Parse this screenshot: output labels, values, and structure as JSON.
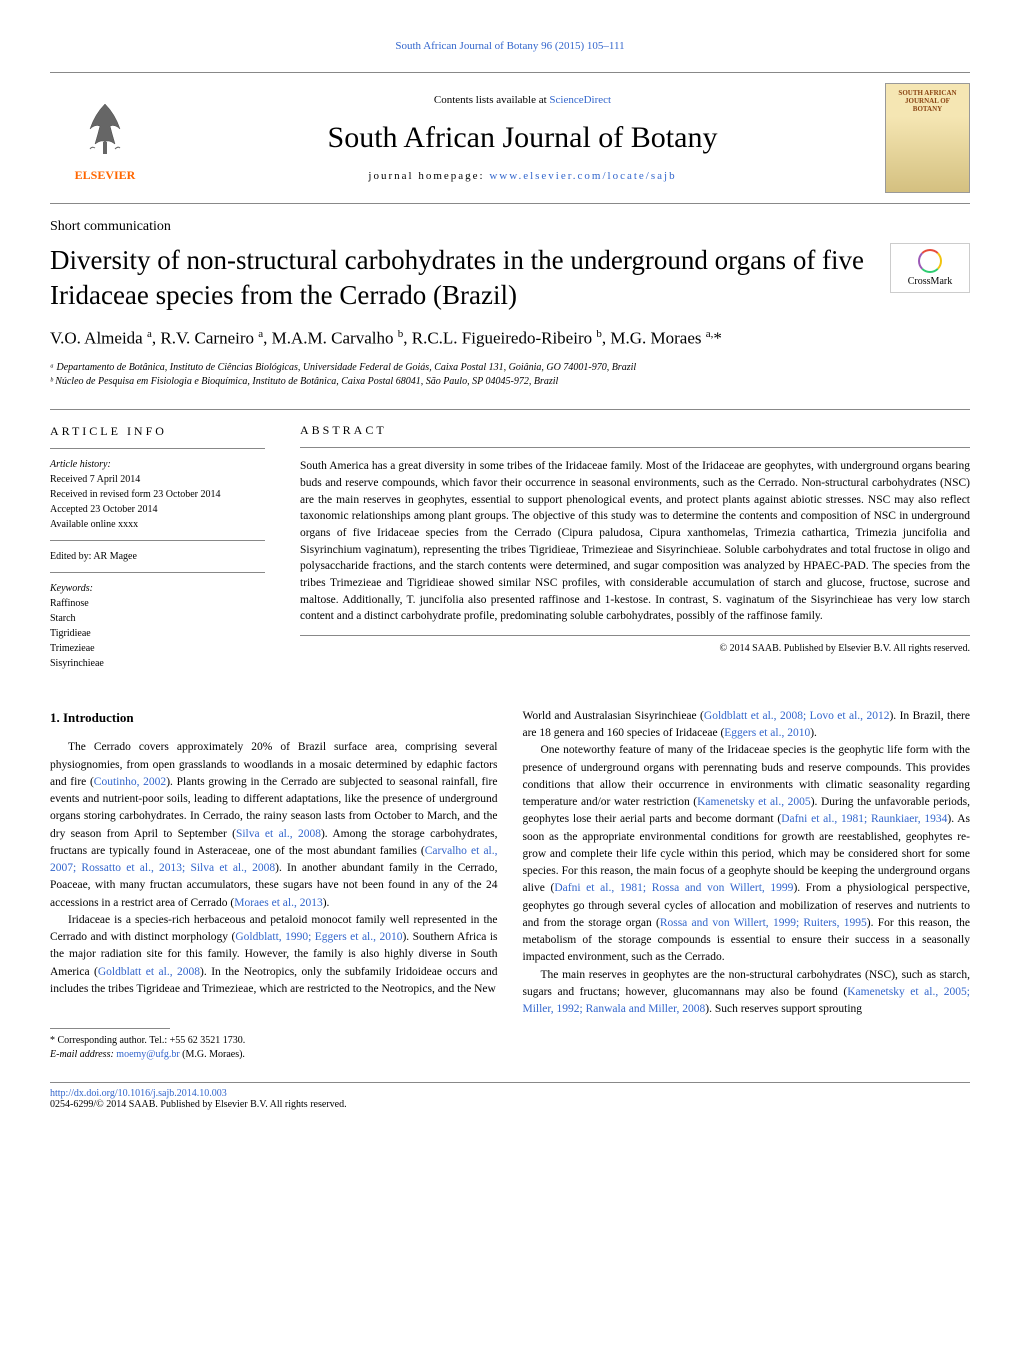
{
  "header": {
    "citation_link": "South African Journal of Botany 96 (2015) 105–111",
    "contents_text": "Contents lists available at ",
    "contents_link": "ScienceDirect",
    "journal_name": "South African Journal of Botany",
    "homepage_label": "journal homepage: ",
    "homepage_url": "www.elsevier.com/locate/sajb",
    "elsevier_text": "ELSEVIER",
    "cover_title": "SOUTH AFRICAN JOURNAL OF BOTANY",
    "crossmark_text": "CrossMark"
  },
  "article": {
    "short_comm": "Short communication",
    "title": "Diversity of non-structural carbohydrates in the underground organs of five Iridaceae species from the Cerrado (Brazil)",
    "authors_html": "V.O. Almeida <sup>a</sup>, R.V. Carneiro <sup>a</sup>, M.A.M. Carvalho <sup>b</sup>, R.C.L. Figueiredo-Ribeiro <sup>b</sup>, M.G. Moraes <sup>a,</sup>*",
    "affiliations": [
      "ᵃ Departamento de Botânica, Instituto de Ciências Biológicas, Universidade Federal de Goiás, Caixa Postal 131, Goiânia, GO 74001-970, Brazil",
      "ᵇ Núcleo de Pesquisa em Fisiologia e Bioquímica, Instituto de Botânica, Caixa Postal 68041, São Paulo, SP 04045-972, Brazil"
    ]
  },
  "info": {
    "heading": "ARTICLE INFO",
    "history_label": "Article history:",
    "history": [
      "Received 7 April 2014",
      "Received in revised form 23 October 2014",
      "Accepted 23 October 2014",
      "Available online xxxx"
    ],
    "edited_by": "Edited by: AR Magee",
    "keywords_label": "Keywords:",
    "keywords": [
      "Raffinose",
      "Starch",
      "Tigridieae",
      "Trimezieae",
      "Sisyrinchieae"
    ]
  },
  "abstract": {
    "heading": "ABSTRACT",
    "text": "South America has a great diversity in some tribes of the Iridaceae family. Most of the Iridaceae are geophytes, with underground organs bearing buds and reserve compounds, which favor their occurrence in seasonal environments, such as the Cerrado. Non-structural carbohydrates (NSC) are the main reserves in geophytes, essential to support phenological events, and protect plants against abiotic stresses. NSC may also reflect taxonomic relationships among plant groups. The objective of this study was to determine the contents and composition of NSC in underground organs of five Iridaceae species from the Cerrado (Cipura paludosa, Cipura xanthomelas, Trimezia cathartica, Trimezia juncifolia and Sisyrinchium vaginatum), representing the tribes Tigridieae, Trimezieae and Sisyrinchieae. Soluble carbohydrates and total fructose in oligo and polysaccharide fractions, and the starch contents were determined, and sugar composition was analyzed by HPAEC-PAD. The species from the tribes Trimezieae and Tigridieae showed similar NSC profiles, with considerable accumulation of starch and glucose, fructose, sucrose and maltose. Additionally, T. juncifolia also presented raffinose and 1-kestose. In contrast, S. vaginatum of the Sisyrinchieae has very low starch content and a distinct carbohydrate profile, predominating soluble carbohydrates, possibly of the raffinose family.",
    "copyright": "© 2014 SAAB. Published by Elsevier B.V. All rights reserved."
  },
  "body": {
    "section_heading": "1. Introduction",
    "left_paragraphs": [
      "The Cerrado covers approximately 20% of Brazil surface area, comprising several physiognomies, from open grasslands to woodlands in a mosaic determined by edaphic factors and fire (<span class='ref-link'>Coutinho, 2002</span>). Plants growing in the Cerrado are subjected to seasonal rainfall, fire events and nutrient-poor soils, leading to different adaptations, like the presence of underground organs storing carbohydrates. In Cerrado, the rainy season lasts from October to March, and the dry season from April to September (<span class='ref-link'>Silva et al., 2008</span>). Among the storage carbohydrates, fructans are typically found in Asteraceae, one of the most abundant families (<span class='ref-link'>Carvalho et al., 2007; Rossatto et al., 2013; Silva et al., 2008</span>). In another abundant family in the Cerrado, Poaceae, with many fructan accumulators, these sugars have not been found in any of the 24 accessions in a restrict area of Cerrado (<span class='ref-link'>Moraes et al., 2013</span>).",
      "Iridaceae is a species-rich herbaceous and petaloid monocot family well represented in the Cerrado and with distinct morphology (<span class='ref-link'>Goldblatt, 1990; Eggers et al., 2010</span>). Southern Africa is the major radiation site for this family. However, the family is also highly diverse in South America (<span class='ref-link'>Goldblatt et al., 2008</span>). In the Neotropics, only the subfamily Iridoideae occurs and includes the tribes Tigrideae and Trimezieae, which are restricted to the Neotropics, and the New"
    ],
    "right_paragraphs": [
      "World and Australasian Sisyrinchieae (<span class='ref-link'>Goldblatt et al., 2008; Lovo et al., 2012</span>). In Brazil, there are 18 genera and 160 species of Iridaceae (<span class='ref-link'>Eggers et al., 2010</span>).",
      "One noteworthy feature of many of the Iridaceae species is the geophytic life form with the presence of underground organs with perennating buds and reserve compounds. This provides conditions that allow their occurrence in environments with climatic seasonality regarding temperature and/or water restriction (<span class='ref-link'>Kamenetsky et al., 2005</span>). During the unfavorable periods, geophytes lose their aerial parts and become dormant (<span class='ref-link'>Dafni et al., 1981; Raunkiaer, 1934</span>). As soon as the appropriate environmental conditions for growth are reestablished, geophytes re-grow and complete their life cycle within this period, which may be considered short for some species. For this reason, the main focus of a geophyte should be keeping the underground organs alive (<span class='ref-link'>Dafni et al., 1981; Rossa and von Willert, 1999</span>). From a physiological perspective, geophytes go through several cycles of allocation and mobilization of reserves and nutrients to and from the storage organ (<span class='ref-link'>Rossa and von Willert, 1999; Ruiters, 1995</span>). For this reason, the metabolism of the storage compounds is essential to ensure their success in a seasonally impacted environment, such as the Cerrado.",
      "The main reserves in geophytes are the non-structural carbohydrates (NSC), such as starch, sugars and fructans; however, glucomannans may also be found (<span class='ref-link'>Kamenetsky et al., 2005; Miller, 1992; Ranwala and Miller, 2008</span>). Such reserves support sprouting"
    ]
  },
  "footnote": {
    "corresponding": "* Corresponding author. Tel.: +55 62 3521 1730.",
    "email_label": "E-mail address: ",
    "email": "moemy@ufg.br",
    "email_suffix": " (M.G. Moraes)."
  },
  "bottom": {
    "doi": "http://dx.doi.org/10.1016/j.sajb.2014.10.003",
    "issn_line": "0254-6299/© 2014 SAAB. Published by Elsevier B.V. All rights reserved."
  },
  "colors": {
    "link": "#3366cc",
    "elsevier_orange": "#ff6600",
    "border": "#888888",
    "cover_bg_top": "#f5e6b3",
    "cover_text": "#8b4513"
  }
}
